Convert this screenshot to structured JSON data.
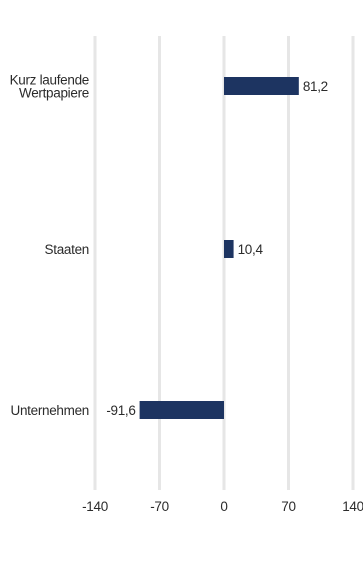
{
  "chart_data": {
    "type": "bar",
    "orientation": "horizontal",
    "title": "",
    "xlabel": "",
    "ylabel": "",
    "categories": [
      [
        "Kurz laufende",
        "Wertpapiere"
      ],
      [
        "Staaten"
      ],
      [
        "Unternehmen"
      ]
    ],
    "values": [
      81.2,
      10.4,
      -91.6
    ],
    "value_labels": [
      "81,2",
      "10,4",
      "-91,6"
    ],
    "xlim": [
      -140,
      140
    ],
    "xticks": [
      -140,
      -70,
      0,
      70,
      140
    ],
    "xtick_labels": [
      "-140",
      "-70",
      "0",
      "70",
      "140"
    ],
    "grid": "vertical",
    "legend": "none",
    "bar_color": "#1d3461",
    "grid_color": "#e6e6e6"
  }
}
